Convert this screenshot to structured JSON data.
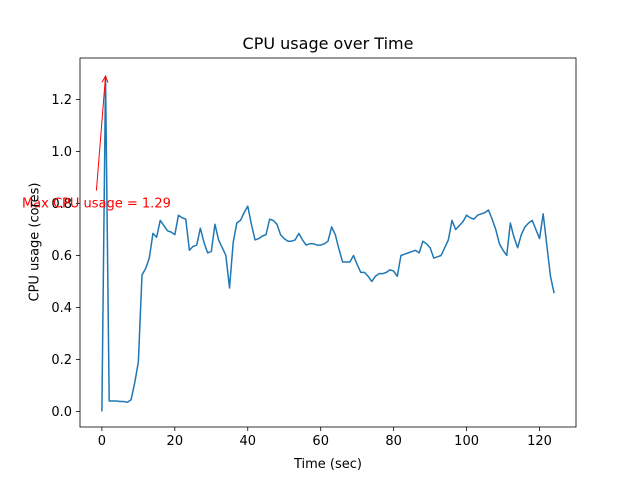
{
  "chart_data": {
    "type": "line",
    "title": "CPU usage over Time",
    "xlabel": "Time (sec)",
    "ylabel": "CPU usage (cores)",
    "xlim": [
      -6,
      130
    ],
    "ylim": [
      -0.06,
      1.36
    ],
    "xticks": [
      0,
      20,
      40,
      60,
      80,
      100,
      120
    ],
    "xtick_labels": [
      "0",
      "20",
      "40",
      "60",
      "80",
      "100",
      "120"
    ],
    "yticks": [
      0.0,
      0.2,
      0.4,
      0.6,
      0.8,
      1.0,
      1.2
    ],
    "ytick_labels": [
      "0.0",
      "0.2",
      "0.4",
      "0.6",
      "0.8",
      "1.0",
      "1.2"
    ],
    "grid": false,
    "line_color": "#1f77b4",
    "annotation": {
      "text": "Max CPU usage = 1.29",
      "color": "#ff0000",
      "x": 1,
      "y": 1.29,
      "text_x": -1.5,
      "text_y": 0.85
    },
    "series": [
      {
        "x": [
          0,
          1,
          2,
          3,
          4,
          5,
          6,
          7,
          8,
          9,
          10,
          11,
          12,
          13,
          14,
          15,
          16,
          17,
          18,
          19,
          20,
          21,
          22,
          23,
          24,
          25,
          26,
          27,
          28,
          29,
          30,
          31,
          32,
          33,
          34,
          35,
          36,
          37,
          38,
          39,
          40,
          41,
          42,
          43,
          44,
          45,
          46,
          47,
          48,
          49,
          50,
          51,
          52,
          53,
          54,
          55,
          56,
          57,
          58,
          59,
          60,
          61,
          62,
          63,
          64,
          65,
          66,
          67,
          68,
          69,
          70,
          71,
          72,
          73,
          74,
          75,
          76,
          77,
          78,
          79,
          80,
          81,
          82,
          83,
          84,
          85,
          86,
          87,
          88,
          89,
          90,
          91,
          92,
          93,
          94,
          95,
          96,
          97,
          98,
          99,
          100,
          101,
          102,
          103,
          104,
          105,
          106,
          107,
          108,
          109,
          110,
          111,
          112,
          113,
          114,
          115,
          116,
          117,
          118,
          119,
          120,
          121,
          122,
          123,
          124
        ],
        "y": [
          0.0,
          1.29,
          0.04,
          0.04,
          0.04,
          0.038,
          0.038,
          0.035,
          0.045,
          0.11,
          0.19,
          0.525,
          0.55,
          0.59,
          0.685,
          0.67,
          0.735,
          0.715,
          0.695,
          0.69,
          0.68,
          0.755,
          0.745,
          0.74,
          0.62,
          0.635,
          0.64,
          0.705,
          0.65,
          0.61,
          0.615,
          0.72,
          0.66,
          0.63,
          0.6,
          0.475,
          0.65,
          0.725,
          0.735,
          0.765,
          0.79,
          0.72,
          0.66,
          0.665,
          0.675,
          0.68,
          0.74,
          0.735,
          0.72,
          0.68,
          0.665,
          0.655,
          0.655,
          0.66,
          0.685,
          0.66,
          0.64,
          0.645,
          0.645,
          0.64,
          0.64,
          0.645,
          0.655,
          0.71,
          0.68,
          0.625,
          0.575,
          0.575,
          0.575,
          0.6,
          0.565,
          0.535,
          0.535,
          0.52,
          0.5,
          0.52,
          0.53,
          0.53,
          0.535,
          0.545,
          0.54,
          0.52,
          0.6,
          0.605,
          0.61,
          0.615,
          0.62,
          0.61,
          0.655,
          0.645,
          0.63,
          0.59,
          0.595,
          0.6,
          0.63,
          0.66,
          0.735,
          0.7,
          0.715,
          0.73,
          0.755,
          0.745,
          0.74,
          0.755,
          0.76,
          0.765,
          0.775,
          0.74,
          0.7,
          0.645,
          0.62,
          0.6,
          0.725,
          0.67,
          0.63,
          0.68,
          0.71,
          0.725,
          0.735,
          0.7,
          0.665,
          0.76,
          0.64,
          0.52,
          0.455
        ]
      }
    ]
  }
}
